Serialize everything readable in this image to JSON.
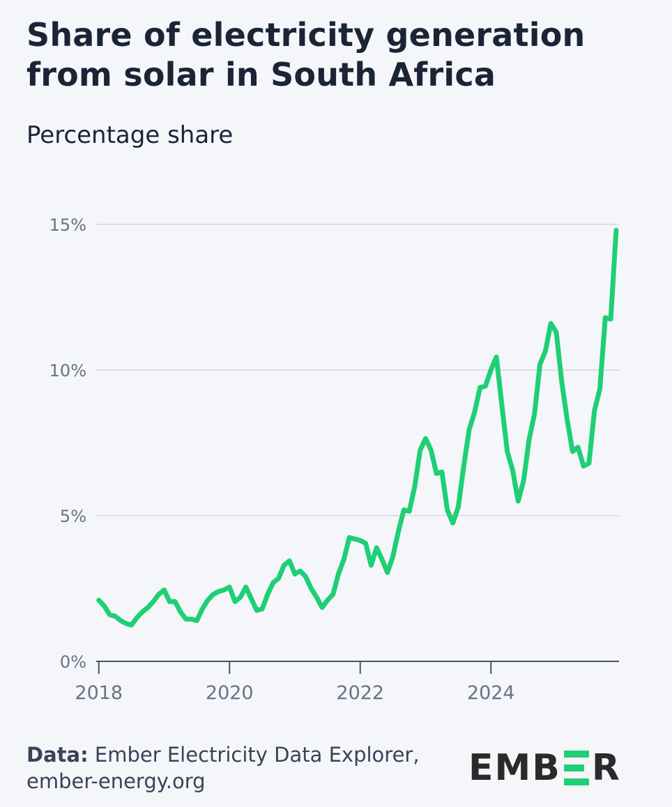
{
  "title": "Share of electricity generation from solar in South Africa",
  "subtitle": "Percentage share",
  "footer": {
    "data_label": "Data:",
    "source": "Ember Electricity Data Explorer,",
    "url": "ember-energy.org"
  },
  "logo": {
    "left": "EMB",
    "right": "R",
    "mark": "E"
  },
  "colors": {
    "line": "#1fcf75",
    "grid": "#d3d7e6",
    "axis": "#4a5068",
    "tick": "#6b7185"
  },
  "chart_data": {
    "type": "line",
    "title": "Share of electricity generation from solar in South Africa",
    "ylabel": "Percentage share",
    "xlabel": "",
    "xlim": [
      2017.96,
      2025.96
    ],
    "ylim": [
      0,
      15
    ],
    "yticks": [
      0,
      5,
      10,
      15
    ],
    "ytick_labels": [
      "0%",
      "5%",
      "10%",
      "15%"
    ],
    "xticks": [
      2018,
      2020,
      2022,
      2024
    ],
    "xtick_labels": [
      "2018",
      "2020",
      "2022",
      "2024"
    ],
    "grid": true,
    "series": [
      {
        "name": "Solar",
        "start": "2018-01",
        "frequency": "monthly",
        "values": [
          2.1,
          1.9,
          1.6,
          1.55,
          1.4,
          1.3,
          1.25,
          1.5,
          1.7,
          1.85,
          2.05,
          2.3,
          2.45,
          2.05,
          2.05,
          1.7,
          1.45,
          1.45,
          1.4,
          1.8,
          2.1,
          2.3,
          2.4,
          2.45,
          2.55,
          2.05,
          2.2,
          2.55,
          2.15,
          1.75,
          1.8,
          2.3,
          2.7,
          2.85,
          3.3,
          3.45,
          3.0,
          3.1,
          2.9,
          2.5,
          2.2,
          1.85,
          2.1,
          2.3,
          3.0,
          3.5,
          4.25,
          4.2,
          4.15,
          4.05,
          3.3,
          3.9,
          3.5,
          3.05,
          3.6,
          4.45,
          5.2,
          5.15,
          6.0,
          7.25,
          7.65,
          7.25,
          6.45,
          6.5,
          5.2,
          4.75,
          5.3,
          6.7,
          7.95,
          8.55,
          9.4,
          9.45,
          10.0,
          10.45,
          8.8,
          7.2,
          6.55,
          5.5,
          6.2,
          7.6,
          8.5,
          10.2,
          10.65,
          11.6,
          11.3,
          9.6,
          8.3,
          7.2,
          7.35,
          6.7,
          6.8,
          8.6,
          9.35,
          11.8,
          11.75,
          14.8
        ]
      }
    ]
  }
}
